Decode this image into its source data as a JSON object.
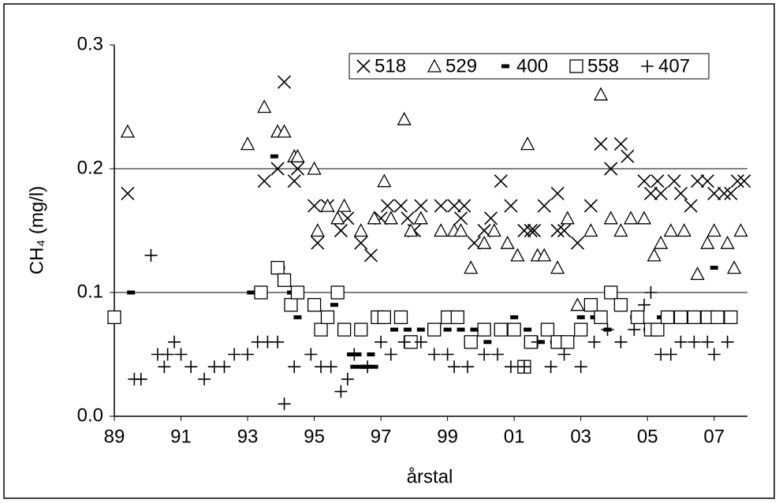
{
  "chart_data": {
    "type": "scatter",
    "xlabel": "årstal",
    "ylabel": "CH₄ (mg/l)",
    "xlim": [
      89,
      108
    ],
    "ylim": [
      0,
      0.3
    ],
    "xticks": [
      89,
      91,
      93,
      95,
      97,
      99,
      {
        "value": 101,
        "label": "01"
      },
      {
        "value": 103,
        "label": "03"
      },
      {
        "value": 105,
        "label": "05"
      },
      {
        "value": 107,
        "label": "07"
      }
    ],
    "yticks": [
      {
        "value": 0,
        "label": "0.0"
      },
      0.1,
      0.2,
      0.3
    ],
    "grid": true,
    "legend": "top-right",
    "series": [
      {
        "name": "518",
        "marker": "cross",
        "color": "#000000",
        "x": [
          89.4,
          93.5,
          93.9,
          94.1,
          94.4,
          94.5,
          95.0,
          95.1,
          95.4,
          95.8,
          96.0,
          96.4,
          96.7,
          97.0,
          97.2,
          97.6,
          97.8,
          98.0,
          98.2,
          98.8,
          99.2,
          99.4,
          99.5,
          99.8,
          100.1,
          100.3,
          100.6,
          100.9,
          101.3,
          101.5,
          101.6,
          101.9,
          102.3,
          102.3,
          102.5,
          102.9,
          103.3,
          103.6,
          103.9,
          104.2,
          104.4,
          104.9,
          105.1,
          105.3,
          105.4,
          105.8,
          106.0,
          106.3,
          106.5,
          106.8,
          107.0,
          107.3,
          107.5,
          107.7,
          107.9
        ],
        "values": [
          0.18,
          0.19,
          0.2,
          0.27,
          0.19,
          0.2,
          0.17,
          0.14,
          0.17,
          0.15,
          0.16,
          0.14,
          0.13,
          0.16,
          0.17,
          0.17,
          0.16,
          0.15,
          0.17,
          0.17,
          0.17,
          0.16,
          0.17,
          0.14,
          0.15,
          0.16,
          0.19,
          0.17,
          0.15,
          0.15,
          0.15,
          0.17,
          0.18,
          0.15,
          0.15,
          0.14,
          0.17,
          0.22,
          0.2,
          0.22,
          0.21,
          0.19,
          0.18,
          0.19,
          0.18,
          0.19,
          0.18,
          0.17,
          0.19,
          0.19,
          0.18,
          0.18,
          0.18,
          0.19,
          0.19
        ]
      },
      {
        "name": "529",
        "marker": "triangle",
        "color": "#000000",
        "x": [
          89.4,
          93.0,
          93.5,
          93.9,
          94.1,
          94.4,
          94.5,
          95.0,
          95.1,
          95.4,
          95.7,
          95.9,
          96.4,
          96.8,
          97.1,
          97.3,
          97.7,
          97.9,
          98.2,
          98.8,
          99.2,
          99.4,
          99.7,
          100.1,
          100.4,
          100.8,
          101.1,
          101.4,
          101.7,
          101.9,
          102.3,
          102.6,
          102.9,
          103.3,
          103.6,
          103.9,
          104.2,
          104.5,
          104.9,
          105.2,
          105.4,
          105.7,
          106.1,
          106.5,
          106.8,
          107.0,
          107.4,
          107.6,
          107.8
        ],
        "values": [
          0.23,
          0.22,
          0.25,
          0.23,
          0.23,
          0.21,
          0.21,
          0.2,
          0.15,
          0.17,
          0.16,
          0.17,
          0.15,
          0.16,
          0.19,
          0.16,
          0.24,
          0.15,
          0.16,
          0.15,
          0.15,
          0.15,
          0.12,
          0.14,
          0.15,
          0.14,
          0.13,
          0.22,
          0.13,
          0.13,
          0.12,
          0.16,
          0.09,
          0.15,
          0.26,
          0.16,
          0.15,
          0.16,
          0.16,
          0.13,
          0.14,
          0.15,
          0.15,
          0.115,
          0.14,
          0.15,
          0.14,
          0.12,
          0.15
        ]
      },
      {
        "name": "400",
        "marker": "dash",
        "color": "#000000",
        "x": [
          89.5,
          93.1,
          93.8,
          94.0,
          94.3,
          94.5,
          95.0,
          95.6,
          95.9,
          96.1,
          96.2,
          96.3,
          96.4,
          96.5,
          96.6,
          96.7,
          96.8,
          97.0,
          97.4,
          97.8,
          98.2,
          98.6,
          99.0,
          99.4,
          99.8,
          100.2,
          100.6,
          101.0,
          101.4,
          101.8,
          102.2,
          102.6,
          103.0,
          103.4,
          103.8,
          104.2,
          104.6,
          105.0,
          105.4,
          105.8,
          106.2,
          106.6,
          107.0,
          107.4
        ],
        "values": [
          0.1,
          0.1,
          0.21,
          0.12,
          0.1,
          0.08,
          0.09,
          0.09,
          0.07,
          0.05,
          0.04,
          0.05,
          0.04,
          0.04,
          0.04,
          0.05,
          0.04,
          0.08,
          0.07,
          0.07,
          0.07,
          0.07,
          0.07,
          0.07,
          0.07,
          0.06,
          0.07,
          0.08,
          0.07,
          0.06,
          0.06,
          0.06,
          0.08,
          0.08,
          0.07,
          0.09,
          0.08,
          0.07,
          0.08,
          0.08,
          0.08,
          0.08,
          0.12,
          0.08
        ]
      },
      {
        "name": "558",
        "marker": "square",
        "color": "#000000",
        "x": [
          89.0,
          93.4,
          93.9,
          94.1,
          94.3,
          94.5,
          95.0,
          95.2,
          95.4,
          95.7,
          95.9,
          96.4,
          96.9,
          97.1,
          97.6,
          97.9,
          98.6,
          99.0,
          99.3,
          99.7,
          100.1,
          100.6,
          101.0,
          101.3,
          101.5,
          102.0,
          102.3,
          102.6,
          103.0,
          103.3,
          103.6,
          103.9,
          104.2,
          104.7,
          105.1,
          105.3,
          105.6,
          106.0,
          106.4,
          106.8,
          107.1,
          107.5
        ],
        "values": [
          0.08,
          0.1,
          0.12,
          0.11,
          0.09,
          0.1,
          0.09,
          0.07,
          0.08,
          0.1,
          0.07,
          0.07,
          0.08,
          0.08,
          0.08,
          0.06,
          0.07,
          0.08,
          0.08,
          0.06,
          0.07,
          0.07,
          0.07,
          0.04,
          0.06,
          0.07,
          0.06,
          0.06,
          0.07,
          0.09,
          0.08,
          0.1,
          0.09,
          0.08,
          0.07,
          0.07,
          0.08,
          0.08,
          0.08,
          0.08,
          0.08,
          0.08
        ]
      },
      {
        "name": "407",
        "marker": "plus",
        "color": "#000000",
        "x": [
          89.6,
          89.8,
          90.1,
          90.3,
          90.5,
          90.6,
          90.8,
          91.0,
          91.3,
          91.7,
          92.0,
          92.3,
          92.6,
          93.0,
          93.3,
          93.6,
          93.9,
          94.1,
          94.4,
          94.9,
          95.2,
          95.5,
          95.8,
          96.0,
          96.2,
          96.6,
          97.0,
          97.3,
          97.7,
          98.2,
          98.6,
          99.0,
          99.2,
          99.6,
          100.1,
          100.5,
          100.9,
          101.3,
          101.7,
          102.1,
          102.5,
          103.0,
          103.4,
          103.8,
          104.2,
          104.6,
          104.9,
          105.1,
          105.4,
          105.7,
          106.0,
          106.4,
          106.8,
          107.0,
          107.4
        ],
        "values": [
          0.03,
          0.03,
          0.13,
          0.05,
          0.04,
          0.05,
          0.06,
          0.05,
          0.04,
          0.03,
          0.04,
          0.04,
          0.05,
          0.05,
          0.06,
          0.06,
          0.06,
          0.01,
          0.04,
          0.05,
          0.04,
          0.04,
          0.02,
          0.03,
          0.05,
          0.04,
          0.06,
          0.05,
          0.06,
          0.06,
          0.05,
          0.05,
          0.04,
          0.04,
          0.05,
          0.05,
          0.04,
          0.04,
          0.06,
          0.04,
          0.05,
          0.04,
          0.06,
          0.07,
          0.06,
          0.07,
          0.09,
          0.1,
          0.05,
          0.05,
          0.06,
          0.06,
          0.06,
          0.05,
          0.06
        ]
      }
    ]
  }
}
